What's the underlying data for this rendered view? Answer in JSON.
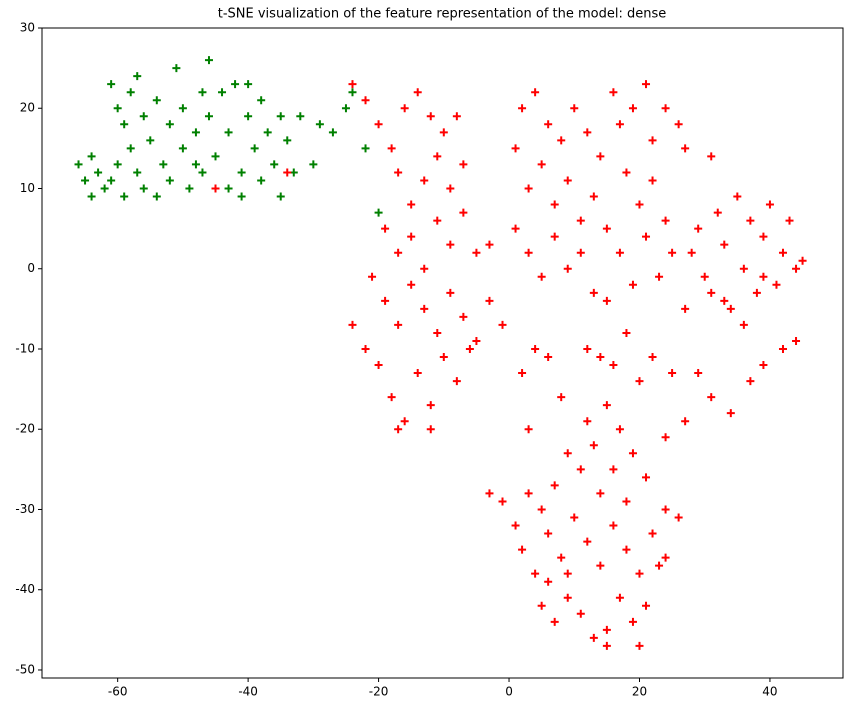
{
  "chart_data": {
    "type": "scatter",
    "title": "t-SNE visualization of the feature representation of the model: dense",
    "xlim": [
      -71.6,
      51.2
    ],
    "ylim": [
      -51,
      30
    ],
    "xticks": [
      -60,
      -40,
      -20,
      0,
      20,
      40
    ],
    "yticks": [
      -50,
      -40,
      -30,
      -20,
      -10,
      0,
      10,
      20,
      30
    ],
    "marker": "+",
    "series": [
      {
        "color": "green",
        "x": [
          -66,
          -65,
          -64,
          -64,
          -63,
          -62,
          -61,
          -60,
          -60,
          -59,
          -58,
          -58,
          -57,
          -57,
          -56,
          -56,
          -55,
          -54,
          -53,
          -52,
          -52,
          -51,
          -50,
          -50,
          -49,
          -48,
          -47,
          -47,
          -46,
          -46,
          -45,
          -44,
          -43,
          -43,
          -42,
          -41,
          -40,
          -39,
          -38,
          -38,
          -37,
          -36,
          -35,
          -34,
          -33,
          -32,
          -30,
          -29,
          -27,
          -25,
          -24,
          -22,
          -20,
          -61,
          -59,
          -54,
          -48,
          -41,
          -40,
          -35
        ],
        "y": [
          13,
          11,
          9,
          14,
          12,
          10,
          11,
          13,
          20,
          18,
          22,
          15,
          12,
          24,
          19,
          10,
          16,
          21,
          13,
          11,
          18,
          25,
          20,
          15,
          10,
          17,
          22,
          12,
          26,
          19,
          14,
          22,
          10,
          17,
          23,
          12,
          19,
          15,
          21,
          11,
          17,
          13,
          19,
          16,
          12,
          19,
          13,
          18,
          17,
          20,
          22,
          15,
          7,
          23,
          9,
          9,
          13,
          9,
          23,
          9
        ]
      },
      {
        "color": "red",
        "x": [
          -24,
          -22,
          -20,
          -18,
          -16,
          -14,
          -12,
          -10,
          -8,
          -17,
          -15,
          -13,
          -11,
          -9,
          -7,
          -19,
          -17,
          -15,
          -13,
          -11,
          -9,
          -7,
          -5,
          -21,
          -19,
          -17,
          -15,
          -13,
          -11,
          -9,
          -7,
          -5,
          -3,
          -24,
          -22,
          -20,
          -18,
          -16,
          -14,
          -12,
          -10,
          -8,
          -6,
          -17,
          -12,
          -1,
          -3,
          1,
          2,
          4,
          6,
          8,
          10,
          12,
          3,
          5,
          7,
          9,
          11,
          13,
          1,
          3,
          5,
          7,
          9,
          11,
          13,
          15,
          14,
          16,
          17,
          19,
          21,
          22,
          24,
          26,
          27,
          18,
          20,
          22,
          24,
          17,
          19,
          21,
          23,
          25,
          15,
          27,
          12,
          14,
          16,
          18,
          20,
          22,
          25,
          4,
          2,
          6,
          28,
          29,
          30,
          31,
          32,
          33,
          34,
          35,
          36,
          37,
          38,
          39,
          40,
          41,
          42,
          43,
          44,
          45,
          36,
          31,
          33,
          39,
          29,
          31,
          34,
          37,
          39,
          42,
          44,
          27,
          24,
          15,
          17,
          13,
          16,
          19,
          21,
          18,
          14,
          11,
          9,
          7,
          5,
          3,
          1,
          -1,
          -3,
          2,
          4,
          6,
          8,
          10,
          12,
          14,
          16,
          18,
          20,
          22,
          24,
          26,
          23,
          21,
          19,
          17,
          15,
          13,
          11,
          9,
          7,
          5,
          6,
          9,
          15,
          20,
          24,
          3,
          8,
          12,
          -45,
          -34
        ],
        "y": [
          23,
          21,
          18,
          15,
          20,
          22,
          19,
          17,
          19,
          12,
          8,
          11,
          14,
          10,
          13,
          5,
          2,
          4,
          0,
          6,
          3,
          7,
          2,
          -1,
          -4,
          -7,
          -2,
          -5,
          -8,
          -3,
          -6,
          -9,
          -4,
          -7,
          -10,
          -12,
          -16,
          -19,
          -13,
          -17,
          -11,
          -14,
          -10,
          -20,
          -20,
          -7,
          3,
          15,
          20,
          22,
          18,
          16,
          20,
          17,
          10,
          13,
          8,
          11,
          6,
          9,
          5,
          2,
          -1,
          4,
          0,
          2,
          -3,
          5,
          14,
          22,
          18,
          20,
          23,
          16,
          20,
          18,
          15,
          12,
          8,
          11,
          6,
          2,
          -2,
          4,
          -1,
          2,
          -4,
          -5,
          -10,
          -11,
          -12,
          -8,
          -14,
          -11,
          -13,
          -10,
          -13,
          -11,
          2,
          5,
          -1,
          -3,
          7,
          3,
          -5,
          9,
          0,
          6,
          -3,
          4,
          8,
          -2,
          2,
          6,
          0,
          1,
          -7,
          14,
          -4,
          -1,
          -13,
          -16,
          -18,
          -14,
          -12,
          -10,
          -9,
          -19,
          -21,
          -17,
          -20,
          -22,
          -25,
          -23,
          -26,
          -29,
          -28,
          -25,
          -23,
          -27,
          -30,
          -28,
          -32,
          -29,
          -28,
          -35,
          -38,
          -33,
          -36,
          -31,
          -34,
          -37,
          -32,
          -35,
          -38,
          -33,
          -30,
          -31,
          -37,
          -42,
          -44,
          -41,
          -45,
          -46,
          -43,
          -41,
          -44,
          -42,
          -39,
          -38,
          -47,
          -47,
          -36,
          -20,
          -16,
          -19,
          10,
          12
        ]
      }
    ]
  }
}
